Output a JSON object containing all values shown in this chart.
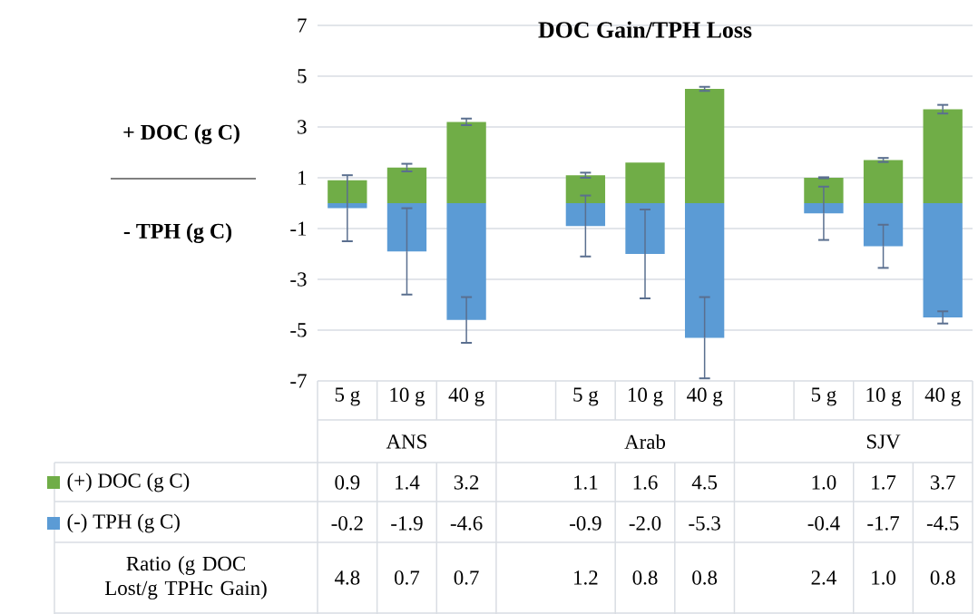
{
  "chart_data": {
    "type": "bar",
    "title": "DOC Gain/TPH Loss",
    "ylabel": "+ DOC (g C)",
    "categories": [
      "5 g",
      "10 g",
      "40 g",
      null,
      "5 g",
      "10 g",
      "40 g",
      null,
      "5 g",
      "10 g",
      "40 g"
    ],
    "series": [
      {
        "name": "(+) DOC (g C)",
        "color": "#70ad47",
        "values": [
          0.9,
          1.4,
          3.2,
          null,
          1.1,
          1.6,
          4.5,
          null,
          1.0,
          1.7,
          3.7
        ],
        "errors": [
          null,
          0.15,
          0.13,
          null,
          0.1,
          null,
          0.08,
          null,
          0.02,
          0.08,
          0.17
        ],
        "value_labels": [
          "0.9",
          "1.4",
          "3.2",
          null,
          "1.1",
          "1.6",
          "4.5",
          null,
          "1.0",
          "1.7",
          "3.7"
        ]
      },
      {
        "name": "(-) TPH (g C)",
        "color": "#5b9bd5",
        "values": [
          -0.2,
          -1.9,
          -4.6,
          null,
          -0.9,
          -2.0,
          -5.3,
          null,
          -0.4,
          -1.7,
          -4.5
        ],
        "errors": [
          1.3,
          1.7,
          0.9,
          null,
          1.2,
          1.75,
          1.6,
          null,
          1.05,
          0.85,
          0.24
        ],
        "value_labels": [
          "-0.2",
          "-1.9",
          "-4.6",
          null,
          "-0.9",
          "-2.0",
          "-5.3",
          null,
          "-0.4",
          "-1.7",
          "-4.5"
        ]
      }
    ],
    "stacked": true,
    "ylim": [
      -7,
      7
    ],
    "yticks": [
      -7,
      -5,
      -3,
      -1,
      1,
      3,
      5,
      7
    ],
    "grid": "y",
    "legend": "bottom",
    "annotations": [
      "- TPH (g C)",
      "ANS",
      "Arab",
      "SJV",
      "Ratio (g DOC Lost/g TPHc Gain)",
      "4.8",
      "0.7",
      "0.7",
      "1.2",
      "0.8",
      "0.8",
      "2.4",
      "1.0",
      "0.8"
    ]
  }
}
